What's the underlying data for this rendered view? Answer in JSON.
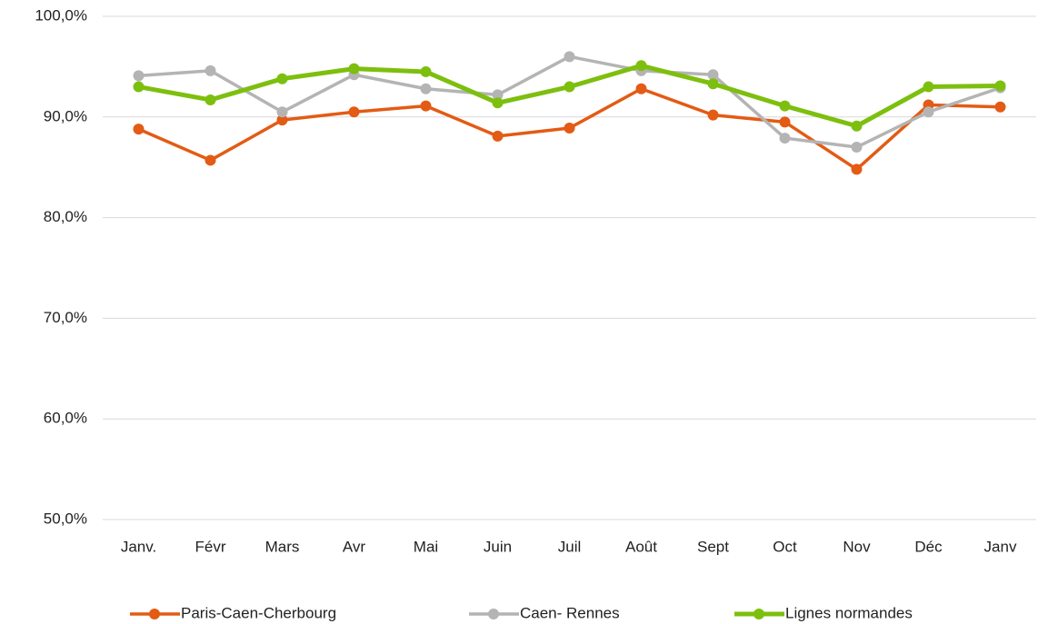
{
  "chart_data": {
    "type": "line",
    "categories": [
      "Janv.",
      "Févr",
      "Mars",
      "Avr",
      "Mai",
      "Juin",
      "Juil",
      "Août",
      "Sept",
      "Oct",
      "Nov",
      "Déc",
      "Janv"
    ],
    "series": [
      {
        "name": "Paris-Caen-Cherbourg",
        "color": "#e35b14",
        "values": [
          88.8,
          85.7,
          89.7,
          90.5,
          91.1,
          88.1,
          88.9,
          92.8,
          90.2,
          89.5,
          84.8,
          91.2,
          91.0
        ]
      },
      {
        "name": "Caen- Rennes",
        "color": "#b4b4b4",
        "values": [
          94.1,
          94.6,
          90.5,
          94.2,
          92.8,
          92.2,
          96.0,
          94.6,
          94.2,
          87.9,
          87.0,
          90.5,
          92.9
        ]
      },
      {
        "name": "Lignes normandes",
        "color": "#7dbf0e",
        "values": [
          93.0,
          91.7,
          93.8,
          94.8,
          94.5,
          91.4,
          93.0,
          95.1,
          93.3,
          91.1,
          89.1,
          93.0,
          93.1
        ]
      }
    ],
    "ylim": [
      50,
      100
    ],
    "yticks": [
      {
        "value": 50,
        "label": "50,0%"
      },
      {
        "value": 60,
        "label": "60,0%"
      },
      {
        "value": 70,
        "label": "70,0%"
      },
      {
        "value": 80,
        "label": "80,0%"
      },
      {
        "value": 90,
        "label": "90,0%"
      },
      {
        "value": 100,
        "label": "100,0%"
      }
    ],
    "grid": true,
    "legend": "bottom"
  }
}
